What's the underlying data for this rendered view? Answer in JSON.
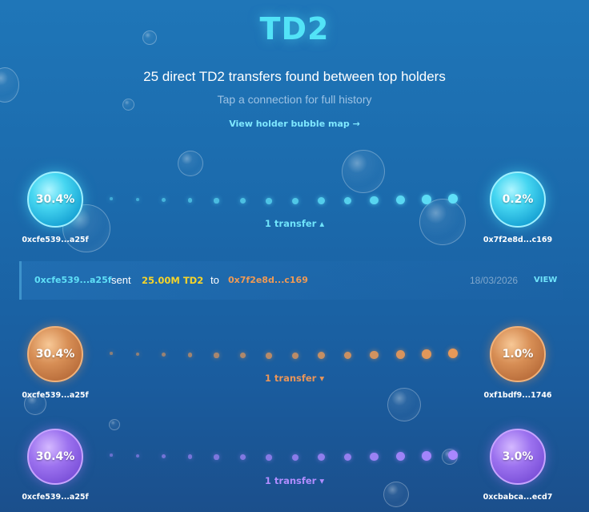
{
  "header": {
    "title": "TD2",
    "subtitle": "25 direct TD2 transfers found between top holders",
    "hint": "Tap a connection for full history",
    "map_link": "View holder bubble map →"
  },
  "connections": [
    {
      "color": "#5fe0f8",
      "from": {
        "pct": "30.4%",
        "address": "0xcfe539...a25f"
      },
      "to": {
        "pct": "0.2%",
        "address": "0x7f2e8d...c169"
      },
      "count_label": "1 transfer ▴",
      "expanded": true
    },
    {
      "color": "#e89958",
      "from": {
        "pct": "30.4%",
        "address": "0xcfe539...a25f"
      },
      "to": {
        "pct": "1.0%",
        "address": "0xf1bdf9...1746"
      },
      "count_label": "1 transfer ▾",
      "expanded": false
    },
    {
      "color": "#a987ff",
      "from": {
        "pct": "30.4%",
        "address": "0xcfe539...a25f"
      },
      "to": {
        "pct": "3.0%",
        "address": "0xcbabca...ecd7"
      },
      "count_label": "1 transfer ▾",
      "expanded": false
    }
  ],
  "transfer_detail": {
    "from": "0xcfe539...a25f",
    "verb": "sent",
    "amount": "25.00M TD2",
    "preposition": "to",
    "to": "0x7f2e8d...c169",
    "date": "18/03/2026",
    "view_label": "VIEW"
  }
}
